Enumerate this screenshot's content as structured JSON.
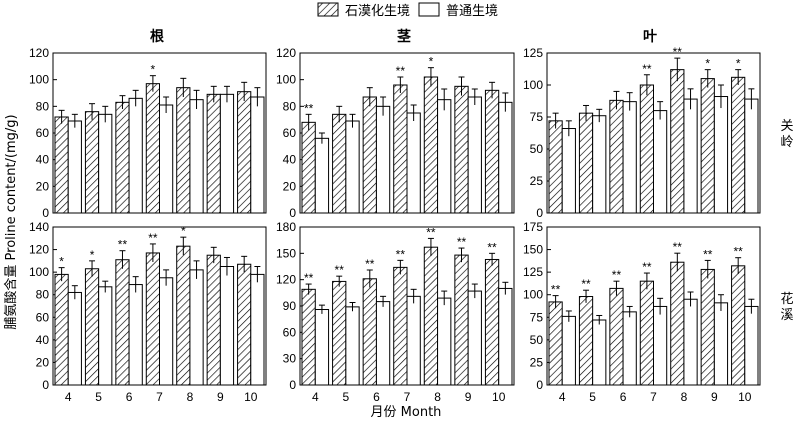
{
  "legend": {
    "hatched_label": "石漠化生境",
    "open_label": "普通生境"
  },
  "xlabel": "月份 Month",
  "ylabel": "脯氨酸含量 Proline content/(mg/g)",
  "row_labels": [
    "关岭",
    "花溪"
  ],
  "colors": {
    "bar_stroke": "#000000",
    "hatch": "#000000",
    "open_fill": "#ffffff",
    "background": "#ffffff"
  },
  "chart_data": [
    {
      "type": "bar",
      "title": "根",
      "row_label": "关岭",
      "categories": [
        "4",
        "5",
        "6",
        "7",
        "8",
        "9",
        "10"
      ],
      "ylim": [
        0,
        120
      ],
      "yticks": [
        0,
        20,
        40,
        60,
        80,
        100,
        120
      ],
      "series": [
        {
          "name": "石漠化生境",
          "values": [
            72,
            76,
            83,
            97,
            94,
            89,
            91
          ],
          "errors": [
            5,
            6,
            5,
            6,
            7,
            6,
            7
          ]
        },
        {
          "name": "普通生境",
          "values": [
            69,
            74,
            86,
            81,
            85,
            89,
            87
          ],
          "errors": [
            5,
            6,
            6,
            6,
            7,
            6,
            7
          ]
        }
      ],
      "significance": [
        "",
        "",
        "",
        "*",
        "",
        "",
        ""
      ]
    },
    {
      "type": "bar",
      "title": "茎",
      "row_label": "关岭",
      "categories": [
        "4",
        "5",
        "6",
        "7",
        "8",
        "9",
        "10"
      ],
      "ylim": [
        0,
        120
      ],
      "yticks": [
        0,
        20,
        40,
        60,
        80,
        100,
        120
      ],
      "series": [
        {
          "name": "石漠化生境",
          "values": [
            68,
            74,
            87,
            96,
            102,
            95,
            92
          ],
          "errors": [
            6,
            6,
            7,
            6,
            7,
            7,
            6
          ]
        },
        {
          "name": "普通生境",
          "values": [
            56,
            69,
            80,
            75,
            85,
            87,
            83
          ],
          "errors": [
            4,
            5,
            7,
            6,
            8,
            6,
            7
          ]
        }
      ],
      "significance": [
        "**",
        "",
        "",
        "**",
        "*",
        "",
        ""
      ]
    },
    {
      "type": "bar",
      "title": "叶",
      "row_label": "关岭",
      "categories": [
        "4",
        "5",
        "6",
        "7",
        "8",
        "9",
        "10"
      ],
      "ylim": [
        0,
        125
      ],
      "yticks": [
        0,
        25,
        50,
        75,
        100,
        125
      ],
      "series": [
        {
          "name": "石漠化生境",
          "values": [
            72,
            78,
            88,
            100,
            112,
            105,
            106
          ],
          "errors": [
            6,
            6,
            7,
            8,
            9,
            7,
            6
          ]
        },
        {
          "name": "普通生境",
          "values": [
            66,
            76,
            87,
            80,
            89,
            91,
            89
          ],
          "errors": [
            6,
            5,
            7,
            7,
            8,
            9,
            8
          ]
        }
      ],
      "significance": [
        "",
        "",
        "",
        "**",
        "**",
        "*",
        "*"
      ]
    },
    {
      "type": "bar",
      "title": "",
      "row_label": "花溪",
      "categories": [
        "4",
        "5",
        "6",
        "7",
        "8",
        "9",
        "10"
      ],
      "ylim": [
        0,
        140
      ],
      "yticks": [
        0,
        20,
        40,
        60,
        80,
        100,
        120,
        140
      ],
      "series": [
        {
          "name": "石漠化生境",
          "values": [
            98,
            103,
            111,
            117,
            123,
            115,
            107
          ],
          "errors": [
            6,
            7,
            8,
            8,
            8,
            7,
            7
          ]
        },
        {
          "name": "普通生境",
          "values": [
            82,
            87,
            89,
            95,
            102,
            105,
            98
          ],
          "errors": [
            6,
            5,
            7,
            7,
            8,
            8,
            7
          ]
        }
      ],
      "significance": [
        "*",
        "*",
        "**",
        "**",
        "*",
        "",
        ""
      ]
    },
    {
      "type": "bar",
      "title": "",
      "row_label": "花溪",
      "categories": [
        "4",
        "5",
        "6",
        "7",
        "8",
        "9",
        "10"
      ],
      "ylim": [
        0,
        180
      ],
      "yticks": [
        0,
        30,
        60,
        90,
        120,
        150,
        180
      ],
      "series": [
        {
          "name": "石漠化生境",
          "values": [
            109,
            118,
            121,
            134,
            157,
            148,
            143
          ],
          "errors": [
            6,
            6,
            10,
            8,
            10,
            8,
            7
          ]
        },
        {
          "name": "普通生境",
          "values": [
            86,
            89,
            95,
            101,
            99,
            107,
            110
          ],
          "errors": [
            5,
            5,
            6,
            8,
            8,
            8,
            7
          ]
        }
      ],
      "significance": [
        "**",
        "**",
        "**",
        "**",
        "**",
        "**",
        "**"
      ]
    },
    {
      "type": "bar",
      "title": "",
      "row_label": "花溪",
      "categories": [
        "4",
        "5",
        "6",
        "7",
        "8",
        "9",
        "10"
      ],
      "ylim": [
        0,
        175
      ],
      "yticks": [
        0,
        25,
        50,
        75,
        100,
        125,
        150,
        175
      ],
      "series": [
        {
          "name": "石漠化生境",
          "values": [
            92,
            98,
            107,
            115,
            136,
            128,
            132
          ],
          "errors": [
            7,
            7,
            8,
            9,
            10,
            10,
            9
          ]
        },
        {
          "name": "普通生境",
          "values": [
            76,
            72,
            81,
            87,
            95,
            91,
            87
          ],
          "errors": [
            6,
            5,
            6,
            9,
            8,
            9,
            8
          ]
        }
      ],
      "significance": [
        "**",
        "**",
        "**",
        "**",
        "**",
        "**",
        "**"
      ]
    }
  ]
}
